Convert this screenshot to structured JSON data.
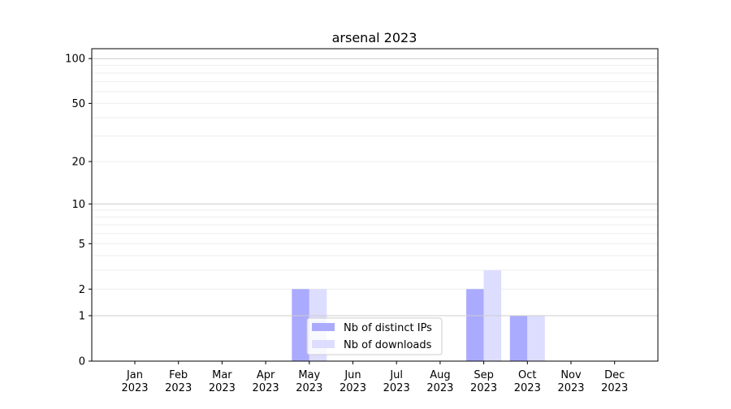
{
  "chart_data": {
    "type": "bar",
    "title": "arsenal 2023",
    "xlabel": "",
    "ylabel": "",
    "y_scale": "symlog (log of 1+y)",
    "ylim": [
      0,
      116
    ],
    "y_ticks": [
      0,
      1,
      2,
      5,
      10,
      20,
      50,
      100
    ],
    "grid": true,
    "legend_position": "lower-center",
    "categories": [
      "Jan\n2023",
      "Feb\n2023",
      "Mar\n2023",
      "Apr\n2023",
      "May\n2023",
      "Jun\n2023",
      "Jul\n2023",
      "Aug\n2023",
      "Sep\n2023",
      "Oct\n2023",
      "Nov\n2023",
      "Dec\n2023"
    ],
    "series": [
      {
        "name": "Nb of distinct IPs",
        "color": "#aaaaff",
        "values": [
          0,
          0,
          0,
          0,
          2,
          0,
          0,
          0,
          2,
          1,
          0,
          0
        ]
      },
      {
        "name": "Nb of downloads",
        "color": "#ddddff",
        "values": [
          0,
          0,
          0,
          0,
          2,
          0,
          0,
          0,
          3,
          1,
          0,
          0
        ]
      }
    ]
  }
}
